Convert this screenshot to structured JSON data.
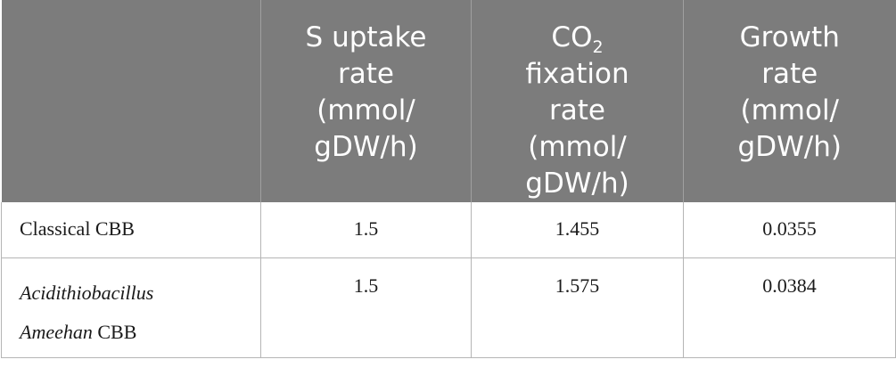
{
  "table": {
    "headers": [
      {
        "lines": []
      },
      {
        "lines": [
          "S uptake",
          "rate",
          "(mmol/",
          "gDW/h)"
        ]
      },
      {
        "lines_co2_prefix": "CO",
        "co2_sub": "2",
        "lines": [
          "fixation",
          "rate",
          "(mmol/",
          "gDW/h)"
        ]
      },
      {
        "lines": [
          "Growth",
          "rate",
          "(mmol/",
          "gDW/h)"
        ]
      }
    ],
    "rows": [
      {
        "name_lines": [
          "Classical CBB"
        ],
        "s_uptake": "1.5",
        "co2_fixation": "1.455",
        "growth": "0.0355"
      },
      {
        "name_italic_1": "Acidithiobacillus",
        "name_italic_2": "Ameehan",
        "name_suffix_2": " CBB",
        "s_uptake": "1.5",
        "co2_fixation": "1.575",
        "growth": "0.0384"
      }
    ]
  }
}
